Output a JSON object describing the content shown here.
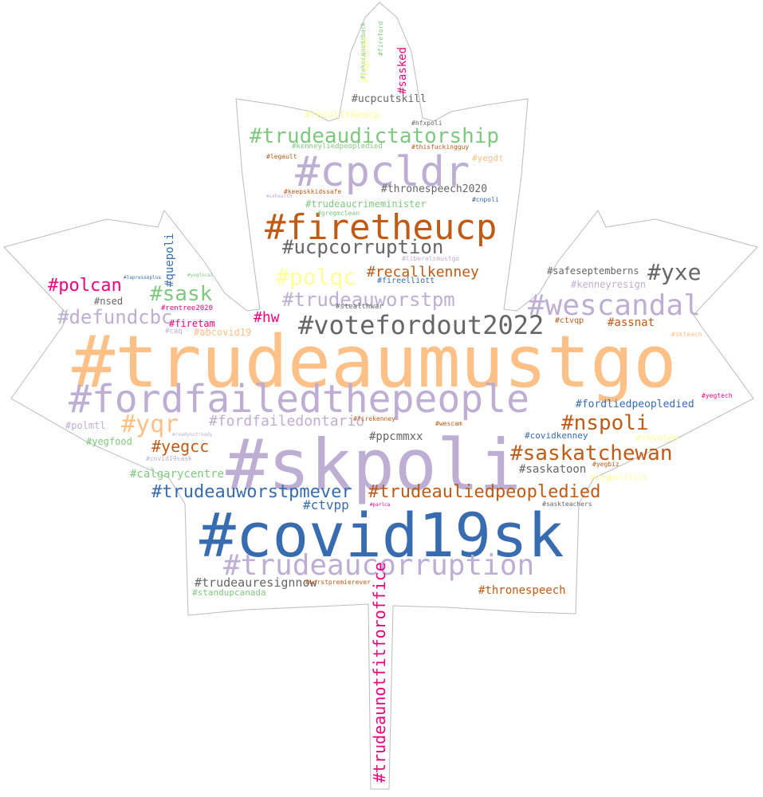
{
  "colors": {
    "orange_light": "#fdc086",
    "purple_light": "#beaed4",
    "blue": "#386cb0",
    "brown": "#bf5b17",
    "green": "#7fc97f",
    "gray": "#666666",
    "magenta": "#f0027f",
    "yellow": "#ffff99",
    "outline": "#bbbbbb"
  },
  "words": [
    "#trudeaumustgo",
    "#skpoli",
    "#covid19sk",
    "#fordfailedthepeople",
    "#cpcldr",
    "#firetheucp",
    "#trudeaucorruption",
    "#wescandal",
    "#votefordout2022",
    "#trudeaudictatorship",
    "#ucpcorruption",
    "#polqc",
    "#yqr",
    "#saskatchewan",
    "#nspoli",
    "#trudeauworstpm",
    "#trudeauworstpmever",
    "#trudeauliedpeopledied",
    "#yxe",
    "#sask",
    "#defundcbc",
    "#polcan",
    "#recallkenney",
    "#yegcc",
    "#trudeaunotfitforoffice",
    "#fordfailedontario",
    "#trudeauresignnow",
    "#thronespeech",
    "#calgarycentre",
    "#ctvpp",
    "#ppcmmxx",
    "#saskatoon",
    "#quepoli",
    "#hw",
    "#thronespeech2020",
    "#ucpcutskill",
    "#fordliedpeopledied",
    "#assnat",
    "#safeseptemberns",
    "#kenneyresign",
    "#trudeaucrimeminister",
    "#nsed",
    "#firetam",
    "#sasked",
    "#abcovid19",
    "#polmtl",
    "#yegfood",
    "#standupcanada",
    "#covidkenney",
    "#fireelliott",
    "#stealthwar",
    "#ctvqp",
    "#recalltheucp",
    "#yegdt",
    "#kenneyliedpeopledied",
    "#hfxpoli",
    "#thisfuckingguy",
    "#legault",
    "#keepskkidssafe",
    "#cnpoli",
    "#gregmclean",
    "#liberalsmustgo",
    "#rentree2020",
    "#caq",
    "#skteach",
    "#yegtech",
    "#firekenney",
    "#wescam",
    "#readynotready",
    "#covid19sask",
    "#yegbiz",
    "#saskteachers",
    "#worstpremierever",
    "#lapresseplus",
    "#yeglocal",
    "#skhealth",
    "#takecanadaback",
    "#fireford",
    "#topline",
    "#parlca",
    "#rnvotes",
    "#yegpolitics"
  ]
}
